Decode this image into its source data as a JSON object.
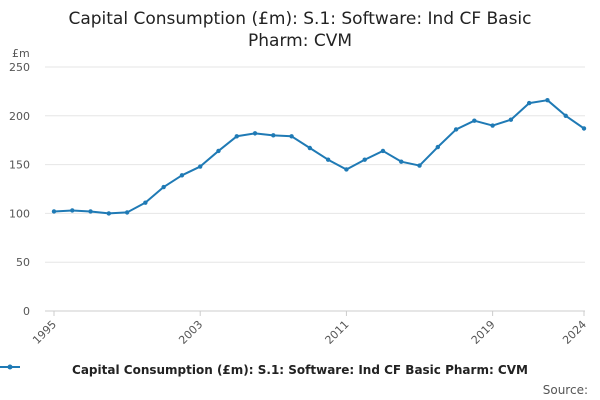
{
  "chart_data": {
    "type": "line",
    "title_line1": "Capital Consumption (£m): S.1: Software: Ind CF Basic",
    "title_line2": "Pharm: CVM",
    "unit_label": "£m",
    "x": [
      1995,
      1996,
      1997,
      1998,
      1999,
      2000,
      2001,
      2002,
      2003,
      2004,
      2005,
      2006,
      2007,
      2008,
      2009,
      2010,
      2011,
      2012,
      2013,
      2014,
      2015,
      2016,
      2017,
      2018,
      2019,
      2020,
      2021,
      2022,
      2023,
      2024
    ],
    "series": [
      {
        "name": "Capital Consumption (£m): S.1: Software: Ind CF Basic Pharm: CVM",
        "color": "#1f7ab5",
        "values": [
          102,
          103,
          102,
          100,
          101,
          111,
          127,
          139,
          148,
          164,
          179,
          182,
          180,
          179,
          167,
          155,
          145,
          155,
          164,
          153,
          149,
          168,
          186,
          195,
          190,
          196,
          213,
          216,
          200,
          187
        ]
      }
    ],
    "xticks": [
      "1995",
      "2003",
      "2011",
      "2019",
      "2024"
    ],
    "yticks": [
      "0",
      "50",
      "100",
      "150",
      "200",
      "250"
    ],
    "ylim": [
      0,
      250
    ],
    "grid": true,
    "legend_position": "bottom"
  },
  "footer": {
    "source_label": "Source:"
  }
}
